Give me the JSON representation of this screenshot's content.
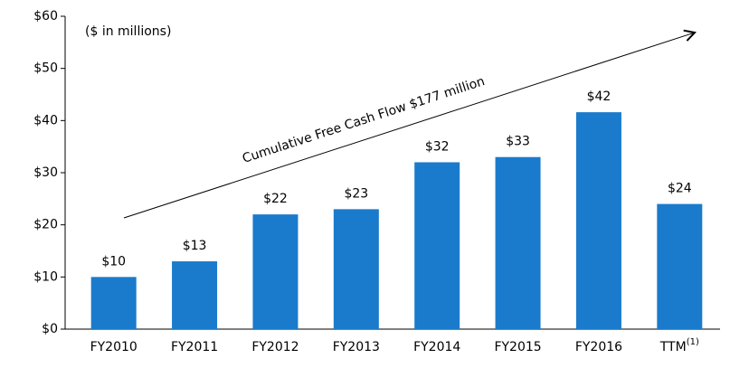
{
  "chart_data": {
    "type": "bar",
    "annotations": [
      "($ in millions)",
      "Cumulative Free Cash Flow $177 million"
    ],
    "categories": [
      "FY2010",
      "FY2011",
      "FY2012",
      "FY2013",
      "FY2014",
      "FY2015",
      "FY2016",
      "TTM"
    ],
    "footnote_marker": "(1)",
    "values": [
      10,
      13,
      22,
      23,
      32,
      33,
      41.6,
      24
    ],
    "value_labels": [
      "$10",
      "$13",
      "$22",
      "$23",
      "$32",
      "$33",
      "$42",
      "$24"
    ],
    "color": "#1a7bcc",
    "ylim": [
      0,
      60
    ],
    "yticks": [
      {
        "value": 0,
        "label": "$0"
      },
      {
        "value": 10,
        "label": "$10"
      },
      {
        "value": 20,
        "label": "$20"
      },
      {
        "value": 30,
        "label": "$30"
      },
      {
        "value": 40,
        "label": "$40"
      },
      {
        "value": 50,
        "label": "$50"
      },
      {
        "value": 60,
        "label": "$60"
      }
    ],
    "grid": false
  }
}
